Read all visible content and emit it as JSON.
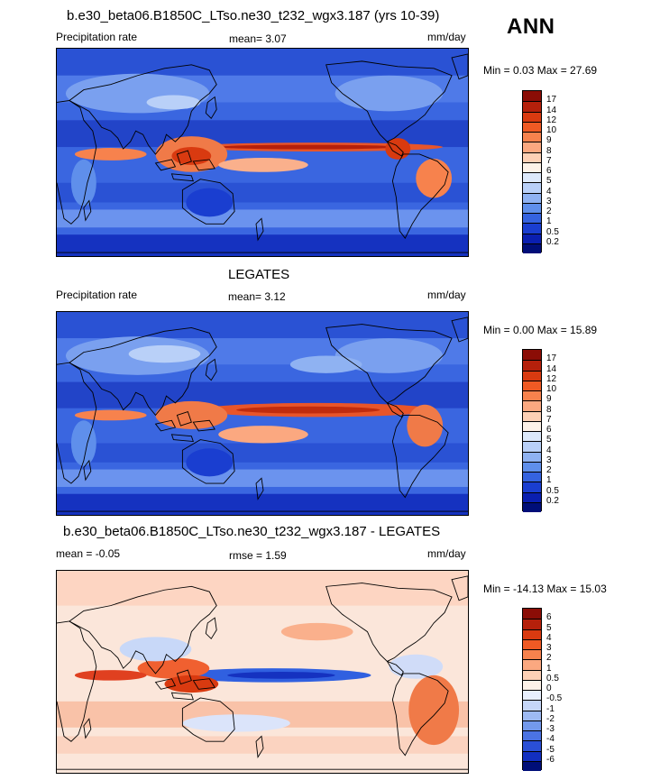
{
  "panels": [
    {
      "title": "b.e30_beta06.B1850C_LTso.ne30_t232_wgx3.187 (yrs 10-39)",
      "left_label": "Precipitation rate",
      "center_label": "mean=   3.07",
      "right_label": "mm/day",
      "minmax": "Min =   0.03 Max =  27.69",
      "colorbar": {
        "labels": [
          "17",
          "14",
          "12",
          "10",
          "9",
          "8",
          "7",
          "6",
          "5",
          "4",
          "3",
          "2",
          "1",
          "0.5",
          "0.2"
        ],
        "colors": [
          "#8b0d06",
          "#b5200b",
          "#d93a10",
          "#f05a24",
          "#f7824d",
          "#fba880",
          "#fdd0b5",
          "#fdf2e8",
          "#dde9fb",
          "#b9d0f8",
          "#8fb2f2",
          "#5f8feb",
          "#3563e0",
          "#1a3ed0",
          "#0a1fb0",
          "#000e78"
        ]
      },
      "kind": "model"
    },
    {
      "title": "LEGATES",
      "left_label": "Precipitation rate",
      "center_label": "mean=   3.12",
      "right_label": "mm/day",
      "minmax": "Min =   0.00 Max =  15.89",
      "colorbar": {
        "labels": [
          "17",
          "14",
          "12",
          "10",
          "9",
          "8",
          "7",
          "6",
          "5",
          "4",
          "3",
          "2",
          "1",
          "0.5",
          "0.2"
        ],
        "colors": [
          "#8b0d06",
          "#b5200b",
          "#d93a10",
          "#f05a24",
          "#f7824d",
          "#fba880",
          "#fdd0b5",
          "#fdf2e8",
          "#dde9fb",
          "#b9d0f8",
          "#8fb2f2",
          "#5f8feb",
          "#3563e0",
          "#1a3ed0",
          "#0a1fb0",
          "#000e78"
        ]
      },
      "kind": "obs"
    },
    {
      "title": "b.e30_beta06.B1850C_LTso.ne30_t232_wgx3.187 - LEGATES",
      "left_label": "mean =  -0.05",
      "center_label": "rmse =   1.59",
      "right_label": "mm/day",
      "minmax": "Min = -14.13 Max =  15.03",
      "colorbar": {
        "labels": [
          "6",
          "5",
          "4",
          "3",
          "2",
          "1",
          "0.5",
          "0",
          "-0.5",
          "-1",
          "-2",
          "-3",
          "-4",
          "-5",
          "-6"
        ],
        "colors": [
          "#8b0d06",
          "#b5200b",
          "#d93a10",
          "#f05a24",
          "#f7824d",
          "#fba880",
          "#fdd0b5",
          "#fdf2e8",
          "#e8effd",
          "#c5d6f8",
          "#9ebaf3",
          "#7399ec",
          "#4b73e3",
          "#2a4fd6",
          "#122fc0",
          "#000e78"
        ]
      },
      "kind": "diff"
    }
  ],
  "season": "ANN",
  "palette_hex": {
    "ocean_blue": "#3a66e0",
    "land_bg": "#6d93ee",
    "red_band": "#e8552a",
    "white": "#ffffff"
  }
}
